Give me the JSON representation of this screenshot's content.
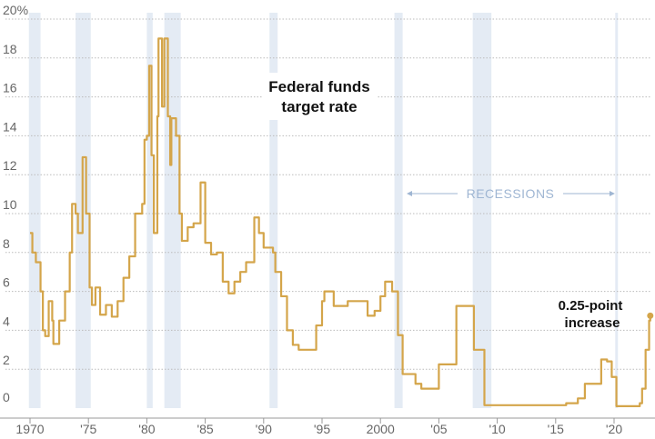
{
  "chart_data": {
    "type": "line",
    "title": "Federal funds target rate",
    "xlabel": "",
    "ylabel": "",
    "xlim": [
      1970,
      2023.5
    ],
    "ylim": [
      0,
      20
    ],
    "grid": true,
    "y_ticks": [
      {
        "value": 20,
        "label": "20%"
      },
      {
        "value": 18,
        "label": "18"
      },
      {
        "value": 16,
        "label": "16"
      },
      {
        "value": 14,
        "label": "14"
      },
      {
        "value": 12,
        "label": "12"
      },
      {
        "value": 10,
        "label": "10"
      },
      {
        "value": 8,
        "label": "8"
      },
      {
        "value": 6,
        "label": "6"
      },
      {
        "value": 4,
        "label": "4"
      },
      {
        "value": 2,
        "label": "2"
      },
      {
        "value": 0,
        "label": "0"
      }
    ],
    "x_ticks": [
      {
        "value": 1970,
        "label": "1970"
      },
      {
        "value": 1975,
        "label": "'75"
      },
      {
        "value": 1980,
        "label": "'80"
      },
      {
        "value": 1985,
        "label": "'85"
      },
      {
        "value": 1990,
        "label": "'90"
      },
      {
        "value": 1995,
        "label": "'95"
      },
      {
        "value": 2000,
        "label": "2000"
      },
      {
        "value": 2005,
        "label": "'05"
      },
      {
        "value": 2010,
        "label": "'10"
      },
      {
        "value": 2015,
        "label": "'15"
      },
      {
        "value": 2020,
        "label": "'20"
      }
    ],
    "recessions_label": "RECESSIONS",
    "recessions": [
      [
        1969.9,
        1970.9
      ],
      [
        1973.9,
        1975.2
      ],
      [
        1980.0,
        1980.5
      ],
      [
        1981.5,
        1982.9
      ],
      [
        1990.5,
        1991.2
      ],
      [
        2001.2,
        2001.9
      ],
      [
        2007.9,
        2009.5
      ],
      [
        2020.1,
        2020.3
      ]
    ],
    "annotation": {
      "line1": "0.25-point",
      "line2": "increase"
    },
    "title_lines": [
      "Federal funds",
      "target rate"
    ],
    "colors": {
      "line": "#d4a54a",
      "recession": "#e4ebf4",
      "recession_text": "#9fb6d3",
      "grid": "#bbbbbb"
    },
    "series": [
      {
        "x": [
          1970.0,
          1970.2,
          1970.5,
          1970.9,
          1971.1,
          1971.3,
          1971.6,
          1971.9,
          1972.0,
          1972.5,
          1973.0,
          1973.4,
          1973.6,
          1973.9,
          1974.1,
          1974.5,
          1974.8,
          1975.1,
          1975.3,
          1975.6,
          1976.0,
          1976.5,
          1977.0,
          1977.5,
          1978.0,
          1978.5,
          1979.0,
          1979.6,
          1979.8,
          1980.0,
          1980.2,
          1980.4,
          1980.6,
          1980.9,
          1981.0,
          1981.3,
          1981.5,
          1981.8,
          1982.0,
          1982.1,
          1982.5,
          1982.8,
          1983.0,
          1983.5,
          1984.0,
          1984.6,
          1985.0,
          1985.5,
          1986.0,
          1986.5,
          1987.0,
          1987.5,
          1988.0,
          1988.5,
          1989.2,
          1989.6,
          1990.0,
          1990.8,
          1991.0,
          1991.5,
          1992.0,
          1992.5,
          1993.0,
          1994.0,
          1994.5,
          1995.0,
          1995.2,
          1996.0,
          1997.2,
          1998.7,
          1998.9,
          1999.5,
          2000.0,
          2000.4,
          2001.0,
          2001.5,
          2001.9,
          2003.0,
          2003.5,
          2004.5,
          2005.0,
          2006.5,
          2007.6,
          2008.0,
          2008.9,
          2015.9,
          2016.9,
          2017.5,
          2018.9,
          2019.4,
          2019.8,
          2020.2,
          2022.2,
          2022.4,
          2022.7,
          2023.0,
          2023.1
        ],
        "y": [
          9.0,
          8.0,
          7.5,
          6.0,
          4.0,
          3.7,
          5.5,
          4.5,
          3.3,
          4.5,
          6.0,
          8.0,
          10.5,
          10.0,
          9.0,
          12.9,
          10.0,
          6.2,
          5.3,
          6.2,
          4.8,
          5.3,
          4.7,
          5.5,
          6.7,
          7.8,
          10.0,
          10.5,
          13.8,
          14.0,
          17.6,
          13.0,
          9.0,
          15.0,
          19.0,
          15.5,
          19.0,
          15.0,
          12.5,
          14.9,
          14.0,
          10.0,
          8.6,
          9.3,
          9.5,
          11.6,
          8.5,
          7.9,
          8.0,
          6.5,
          5.9,
          6.5,
          7.0,
          7.5,
          9.8,
          9.0,
          8.25,
          8.0,
          7.0,
          5.75,
          4.0,
          3.25,
          3.0,
          3.0,
          4.25,
          5.5,
          6.0,
          5.25,
          5.5,
          5.5,
          4.75,
          5.0,
          5.75,
          6.5,
          6.0,
          3.75,
          1.75,
          1.25,
          1.0,
          1.0,
          2.25,
          5.25,
          5.25,
          3.0,
          0.15,
          0.25,
          0.5,
          1.25,
          2.5,
          2.4,
          1.6,
          0.1,
          0.25,
          1.0,
          3.0,
          4.5,
          4.75
        ]
      }
    ]
  }
}
